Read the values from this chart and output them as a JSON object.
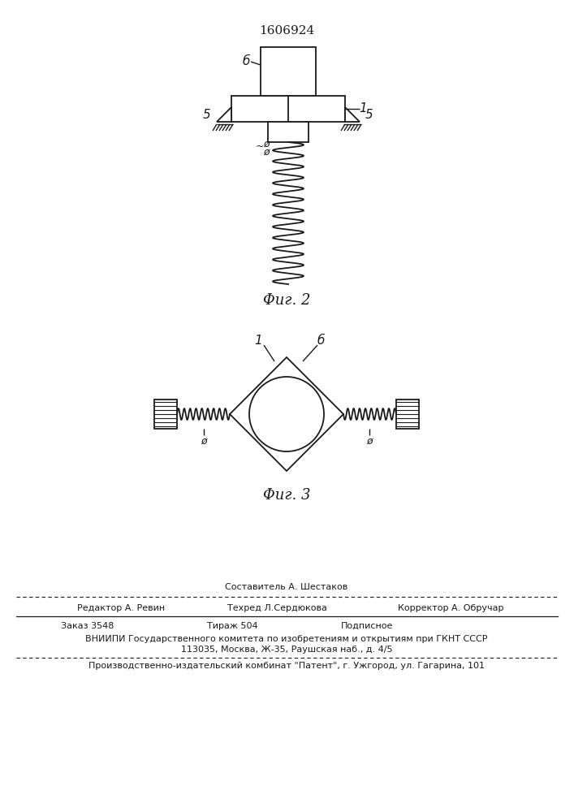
{
  "patent_number": "1606924",
  "fig2_caption": "Φиг. 2",
  "fig3_caption": "Φиг. 3",
  "bg_color": "#ffffff",
  "line_color": "#1a1a1a",
  "label1": "1",
  "label5": "5",
  "label6": "б",
  "label_phi": "ø",
  "label_tilde": "~",
  "footer_sestavitel": "Составитель А. Шестаков",
  "footer_redaktor": "Редактор А. Ревин",
  "footer_tehred": "Техред Л.Сердюкова",
  "footer_korrektor": "Корректор А. Обручар",
  "footer_zakaz": "Заказ 3548",
  "footer_tirazh": "Тираж 504",
  "footer_podpisnoe": "Подписное",
  "footer_vniipи": "ВНИИПИ Государственного комитета по изобретениям и открытиям при ГКНТ СССР",
  "footer_address": "113035, Москва, Ж-35, Раушская наб., д. 4/5",
  "footer_patent": "Производственно-издательский комбинат \"Патент\", г. Ужгород, ул. Гагарина, 101"
}
